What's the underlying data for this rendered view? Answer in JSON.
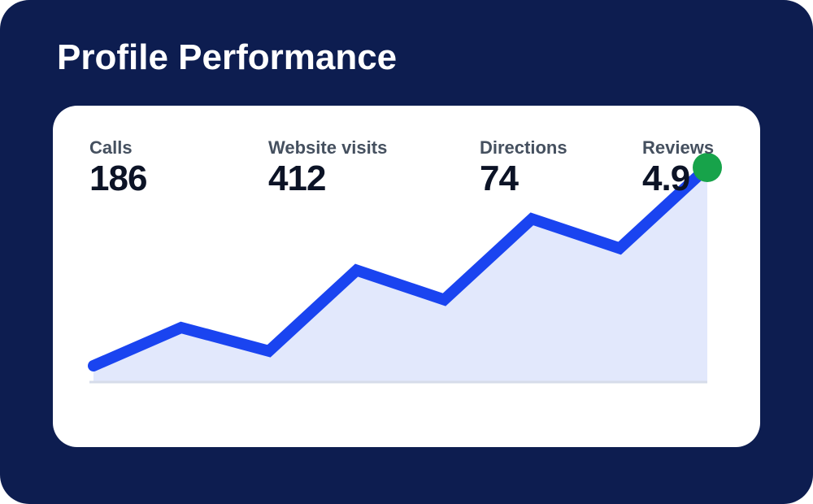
{
  "header": {
    "title": "Profile Performance"
  },
  "metrics": [
    {
      "label": "Calls",
      "value": "186"
    },
    {
      "label": "Website visits",
      "value": "412"
    },
    {
      "label": "Directions",
      "value": "74"
    },
    {
      "label": "Reviews",
      "value": "4.9"
    }
  ],
  "colors": {
    "background": "#0d1d50",
    "card": "#ffffff",
    "line": "#1a44f0",
    "area_fill": "#e2e8fc",
    "endpoint": "#17a34a"
  },
  "chart_data": {
    "type": "area",
    "series": [
      {
        "values": [
          1,
          3.6,
          2,
          7.5,
          5.5,
          11,
          9,
          14.5
        ]
      }
    ],
    "ylim": [
      0,
      15
    ],
    "grid": false,
    "highlight_last_point": true
  }
}
